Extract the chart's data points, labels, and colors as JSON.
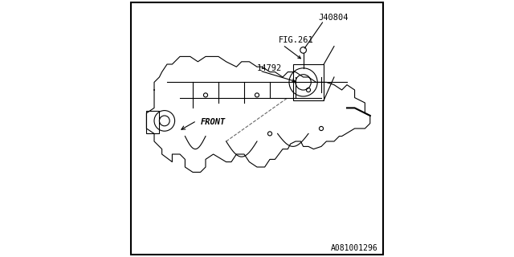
{
  "bg_color": "#ffffff",
  "border_color": "#000000",
  "line_color": "#000000",
  "text_color": "#000000",
  "label_J40804": "J40804",
  "label_FIG261": "FIG.261",
  "label_14792": "14792",
  "label_FRONT": "FRONT",
  "label_partnum": "A081001296",
  "font_size_labels": 7.5,
  "font_size_partnum": 7
}
